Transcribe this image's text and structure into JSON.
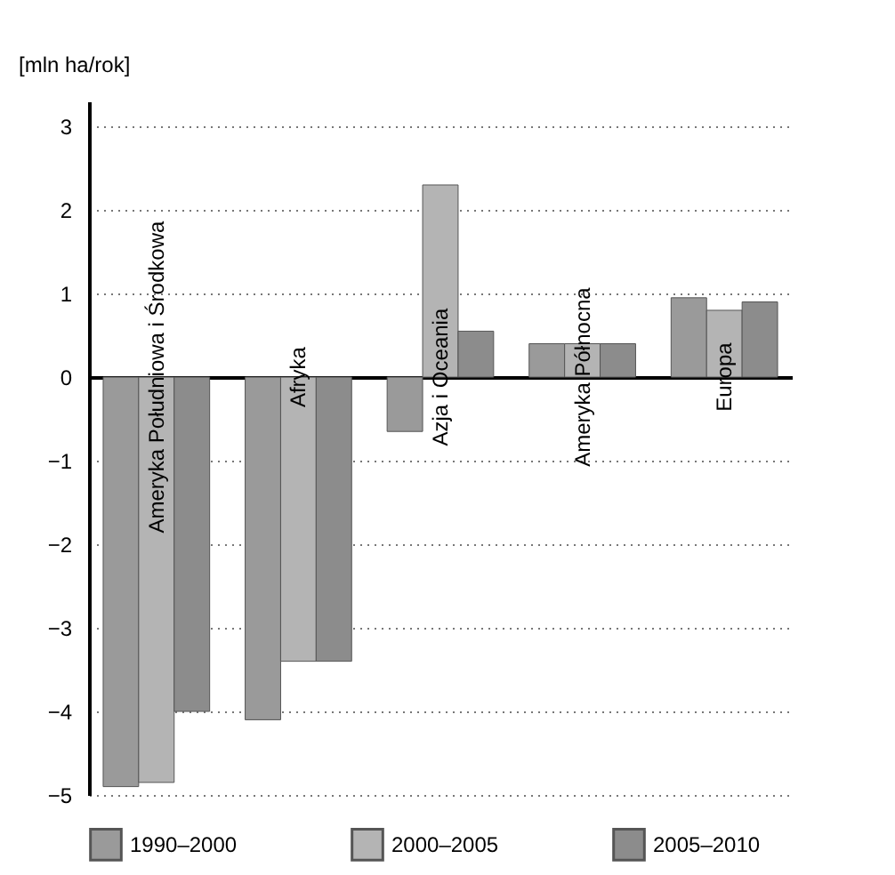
{
  "chart_data": {
    "type": "bar",
    "ylabel": "[mln ha/rok]",
    "categories": [
      "Ameryka Południowa i Środkowa",
      "Afryka",
      "Azja i Oceania",
      "Ameryka Północna",
      "Europa"
    ],
    "series": [
      {
        "name": "1990–2000",
        "color": "#9a9a9a",
        "values": [
          -4.9,
          -4.1,
          -0.65,
          0.4,
          0.95
        ]
      },
      {
        "name": "2000–2005",
        "color": "#b4b4b4",
        "values": [
          -4.85,
          -3.4,
          2.3,
          0.4,
          0.8
        ]
      },
      {
        "name": "2005–2010",
        "color": "#8c8c8c",
        "values": [
          -4.0,
          -3.4,
          0.55,
          0.4,
          0.9
        ]
      }
    ],
    "ylim": [
      -5,
      3.3
    ],
    "yticks": [
      -5,
      -4,
      -3,
      -2,
      -1,
      0,
      1,
      2,
      3
    ],
    "grid": "y",
    "legend": "bottom"
  }
}
